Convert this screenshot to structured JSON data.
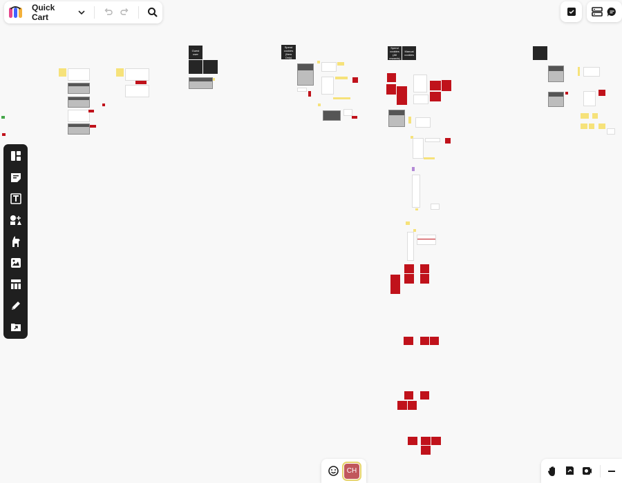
{
  "board": {
    "title": "Quick Cart"
  },
  "toolbar_icons": {
    "logo": "miro-logo-icon",
    "dropdown": "chevron-down-icon",
    "undo": "undo-icon",
    "redo": "redo-icon",
    "search": "search-icon"
  },
  "top_right_icons": [
    "checkbox-icon",
    "layers-icon",
    "comment-icon"
  ],
  "left_tools": [
    "templates-icon",
    "sticky-note-icon",
    "text-icon",
    "shapes-icon",
    "connector-icon",
    "image-icon",
    "table-icon",
    "pen-icon",
    "upload-icon"
  ],
  "collaborator": {
    "initials": "CH",
    "color": "#c1575c"
  },
  "bottom_right_icons": [
    "hand-icon",
    "presentation-icon",
    "video-icon",
    "zoom-out-icon"
  ],
  "canvas": {
    "frames": {
      "guest_user": "Guest user",
      "spend_cookies": "Spend cookies (New Only)",
      "spend_cookies_all": "Spend cookies (All rewards)",
      "manual_cookies": "Manual cookies"
    }
  },
  "colors": {
    "frame_dark": "#262626",
    "sticky_red": "#c0121b",
    "sticky_yellow": "#f6e27a",
    "toolbar_dark": "#1f1f1f"
  }
}
